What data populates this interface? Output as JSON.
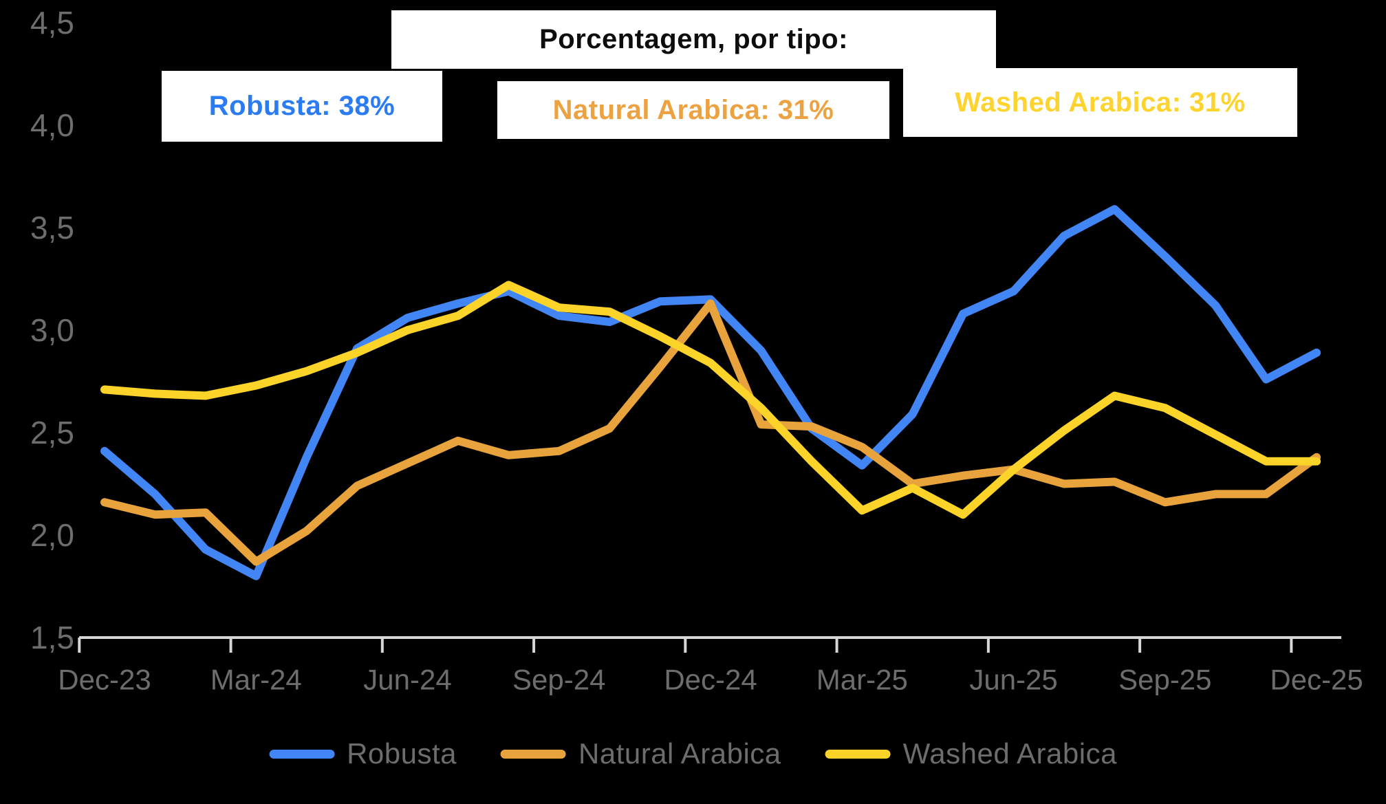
{
  "header": {
    "title": "Porcentagem, por tipo:",
    "stats": [
      {
        "id": "robusta",
        "text": "Robusta: 38%",
        "color": "#2b7bf3"
      },
      {
        "id": "natural-arabica",
        "text": "Natural Arabica: 31%",
        "color": "#eda242"
      },
      {
        "id": "washed-arabica",
        "text": "Washed Arabica: 31%",
        "color": "#fed32e"
      }
    ]
  },
  "legend": {
    "items": [
      {
        "id": "robusta",
        "label": "Robusta",
        "color": "#4285f4"
      },
      {
        "id": "natural-arabica",
        "label": "Natural Arabica",
        "color": "#e8a33d"
      },
      {
        "id": "washed-arabica",
        "label": "Washed Arabica",
        "color": "#fbd329"
      }
    ]
  },
  "chart_data": {
    "type": "line",
    "title": "Porcentagem, por tipo:",
    "background_color": "#000000",
    "axis_color": "#d7d7d7",
    "tick_label_color": "#6d6d6d",
    "grid": false,
    "legend_position": "bottom",
    "ylim": [
      1.5,
      4.5
    ],
    "y_ticks": [
      {
        "label": "4,5",
        "value": 4.5
      },
      {
        "label": "4,0",
        "value": 4.0
      },
      {
        "label": "3,5",
        "value": 3.5
      },
      {
        "label": "3,0",
        "value": 3.0
      },
      {
        "label": "2,5",
        "value": 2.5
      },
      {
        "label": "2,0",
        "value": 2.0
      },
      {
        "label": "1,5",
        "value": 1.5
      }
    ],
    "x": [
      "Dec-23",
      "Jan-24",
      "Feb-24",
      "Mar-24",
      "Apr-24",
      "May-24",
      "Jun-24",
      "Jul-24",
      "Aug-24",
      "Sep-24",
      "Oct-24",
      "Nov-24",
      "Dec-24",
      "Jan-25",
      "Feb-25",
      "Mar-25",
      "Apr-25",
      "May-25",
      "Jun-25",
      "Jul-25",
      "Aug-25",
      "Sep-25",
      "Oct-25",
      "Nov-25",
      "Dec-25"
    ],
    "x_tick_months": [
      0,
      3,
      6,
      9,
      12,
      15,
      18,
      21,
      24
    ],
    "x_tick_labels": [
      "Dec-23",
      "Mar-24",
      "Jun-24",
      "Sep-24",
      "Dec-24",
      "Mar-25",
      "Jun-25",
      "Sep-25",
      "Dec-25"
    ],
    "series": [
      {
        "id": "robusta",
        "name": "Robusta",
        "color": "#4285f4",
        "values": [
          2.41,
          2.2,
          1.93,
          1.8,
          2.38,
          2.91,
          3.06,
          3.13,
          3.19,
          3.07,
          3.04,
          3.14,
          3.15,
          2.9,
          2.52,
          2.34,
          2.59,
          3.08,
          3.19,
          3.46,
          3.59,
          3.36,
          3.12,
          2.76,
          2.89
        ]
      },
      {
        "id": "natural-arabica",
        "name": "Natural Arabica",
        "color": "#e8a33d",
        "values": [
          2.16,
          2.1,
          2.11,
          1.87,
          2.02,
          2.24,
          2.35,
          2.46,
          2.39,
          2.41,
          2.52,
          2.82,
          3.13,
          2.54,
          2.53,
          2.43,
          2.25,
          2.29,
          2.32,
          2.25,
          2.26,
          2.16,
          2.2,
          2.2,
          2.38
        ]
      },
      {
        "id": "washed-arabica",
        "name": "Washed Arabica",
        "color": "#fbd329",
        "values": [
          2.71,
          2.69,
          2.68,
          2.73,
          2.8,
          2.89,
          3.0,
          3.07,
          3.22,
          3.11,
          3.09,
          2.97,
          2.84,
          2.62,
          2.36,
          2.12,
          2.23,
          2.1,
          2.32,
          2.51,
          2.68,
          2.62,
          2.49,
          2.36,
          2.36
        ]
      }
    ]
  }
}
